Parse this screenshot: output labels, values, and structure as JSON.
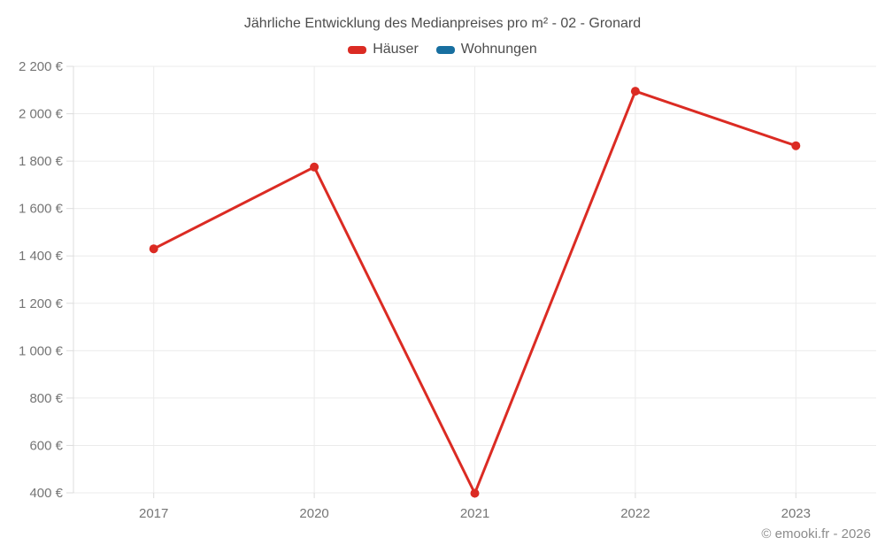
{
  "chart_data": {
    "type": "line",
    "title": "Jährliche Entwicklung des Medianpreises pro m² - 02 - Gronard",
    "categories": [
      "2017",
      "2020",
      "2021",
      "2022",
      "2023"
    ],
    "series": [
      {
        "name": "Häuser",
        "color": "#db2b23",
        "values": [
          1430,
          1775,
          398,
          2095,
          1865
        ]
      },
      {
        "name": "Wohnungen",
        "color": "#186fa0",
        "values": []
      }
    ],
    "ylim": [
      400,
      2200
    ],
    "y_ticks": [
      {
        "value": 400,
        "label": "400 €"
      },
      {
        "value": 600,
        "label": "600 €"
      },
      {
        "value": 800,
        "label": "800 €"
      },
      {
        "value": 1000,
        "label": "1 000 €"
      },
      {
        "value": 1200,
        "label": "1 200 €"
      },
      {
        "value": 1400,
        "label": "1 400 €"
      },
      {
        "value": 1600,
        "label": "1 600 €"
      },
      {
        "value": 1800,
        "label": "1 800 €"
      },
      {
        "value": 2000,
        "label": "2 000 €"
      },
      {
        "value": 2200,
        "label": "2 200 €"
      }
    ],
    "grid": true,
    "legend_position": "top",
    "colors": {
      "grid_line": "#ebebeb",
      "axis_line": "#dcdcdc",
      "tick_label": "#757575",
      "title_text": "#4d4d4d",
      "copyright_text": "#8c8c8c"
    }
  },
  "footer": {
    "copyright": "© emooki.fr - 2026"
  }
}
